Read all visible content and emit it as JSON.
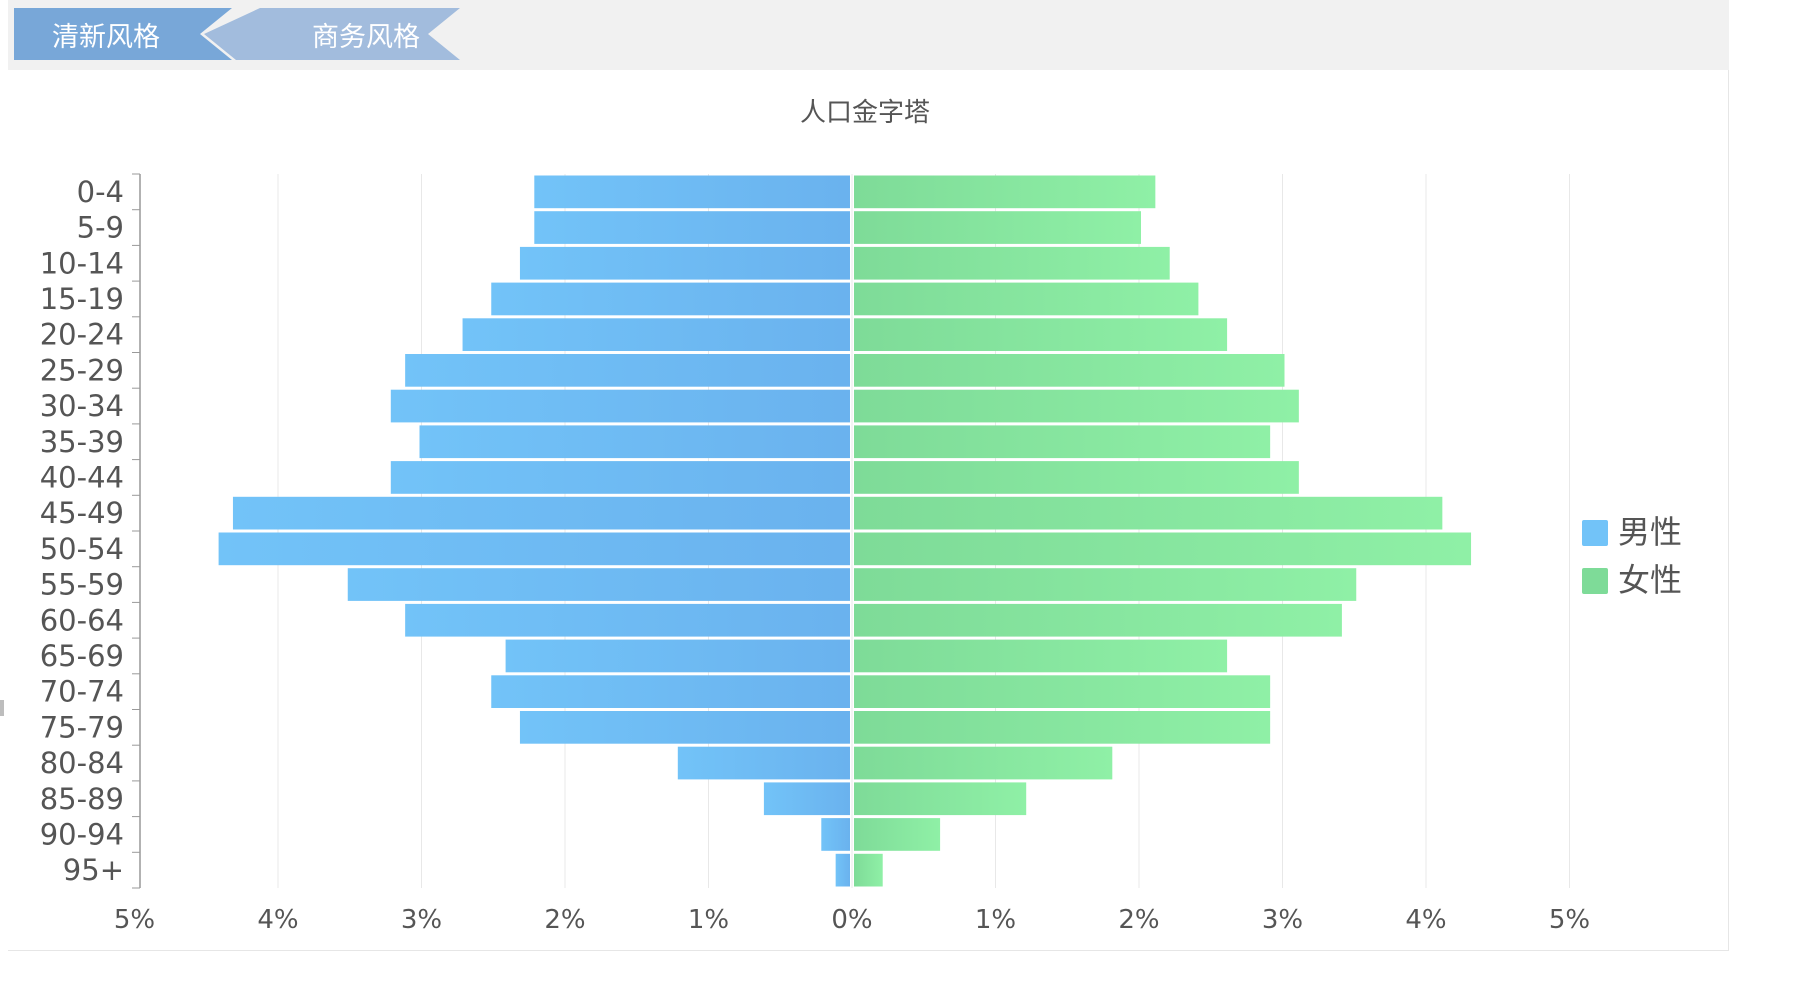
{
  "tabs": [
    {
      "label": "清新风格",
      "active": true,
      "color": "#78a7d8"
    },
    {
      "label": "商务风格",
      "active": false,
      "color": "#a2bcdd"
    }
  ],
  "colors": {
    "male_start": "#72c3f8",
    "male_end": "#6ab2ee",
    "female_start": "#7edb98",
    "female_end": "#8ff0a6",
    "axis": "#999999",
    "grid": "#e8e8e8",
    "text": "#555555"
  },
  "chart_data": {
    "type": "bar",
    "orientation": "horizontal",
    "layout": "population-pyramid",
    "title": "人口金字塔",
    "categories": [
      "0-4",
      "5-9",
      "10-14",
      "15-19",
      "20-24",
      "25-29",
      "30-34",
      "35-39",
      "40-44",
      "45-49",
      "50-54",
      "55-59",
      "60-64",
      "65-69",
      "70-74",
      "75-79",
      "80-84",
      "85-89",
      "90-94",
      "95+"
    ],
    "series": [
      {
        "name": "男性",
        "side": "left",
        "values": [
          2.2,
          2.2,
          2.3,
          2.5,
          2.7,
          3.1,
          3.2,
          3.0,
          3.2,
          4.3,
          4.4,
          3.5,
          3.1,
          2.4,
          2.5,
          2.3,
          1.2,
          0.6,
          0.2,
          0.1
        ]
      },
      {
        "name": "女性",
        "side": "right",
        "values": [
          2.1,
          2.0,
          2.2,
          2.4,
          2.6,
          3.0,
          3.1,
          2.9,
          3.1,
          4.1,
          4.3,
          3.5,
          3.4,
          2.6,
          2.9,
          2.9,
          1.8,
          1.2,
          0.6,
          0.2
        ]
      }
    ],
    "x_ticks": [
      "5%",
      "4%",
      "3%",
      "2%",
      "1%",
      "0%",
      "1%",
      "2%",
      "3%",
      "4%",
      "5%"
    ],
    "xlim": [
      -5,
      5
    ],
    "unit": "%",
    "grid": true,
    "legend_position": "right"
  }
}
